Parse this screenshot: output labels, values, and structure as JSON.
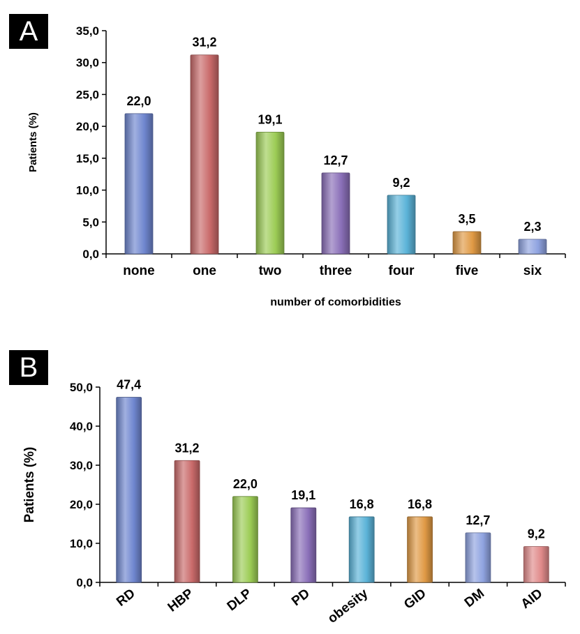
{
  "chart_data": [
    {
      "panel": "A",
      "type": "bar",
      "title": "",
      "xlabel": "number of comorbidities",
      "ylabel": "Patients (%)",
      "ylim": [
        0,
        35
      ],
      "yticks": [
        "0,0",
        "5,0",
        "10,0",
        "15,0",
        "20,0",
        "25,0",
        "30,0",
        "35,0"
      ],
      "categories": [
        "none",
        "one",
        "two",
        "three",
        "four",
        "five",
        "six"
      ],
      "values": [
        22.0,
        31.2,
        19.1,
        12.7,
        9.2,
        3.5,
        2.3
      ],
      "value_labels": [
        "22,0",
        "31,2",
        "19,1",
        "12,7",
        "9,2",
        "3,5",
        "2,3"
      ],
      "colors": [
        "#6f86cf",
        "#c96a6a",
        "#9ccc55",
        "#8a6fb8",
        "#5bb3d8",
        "#e09a45",
        "#8fa3e0"
      ],
      "grid": false,
      "legend": "none"
    },
    {
      "panel": "B",
      "type": "bar",
      "title": "",
      "xlabel": "",
      "ylabel": "Patients (%)",
      "ylim": [
        0,
        50
      ],
      "yticks": [
        "0,0",
        "10,0",
        "20,0",
        "30,0",
        "40,0",
        "50,0"
      ],
      "categories": [
        "RD",
        "HBP",
        "DLP",
        "PD",
        "obesity",
        "GID",
        "DM",
        "AID"
      ],
      "values": [
        47.4,
        31.2,
        22.0,
        19.1,
        16.8,
        16.8,
        12.7,
        9.2
      ],
      "value_labels": [
        "47,4",
        "31,2",
        "22,0",
        "19,1",
        "16,8",
        "16,8",
        "12,7",
        "9,2"
      ],
      "colors": [
        "#6f86cf",
        "#c96a6a",
        "#9ccc55",
        "#8a6fb8",
        "#5bb3d8",
        "#e09a45",
        "#8fa3e0",
        "#e08a8a"
      ],
      "grid": false,
      "legend": "none"
    }
  ]
}
